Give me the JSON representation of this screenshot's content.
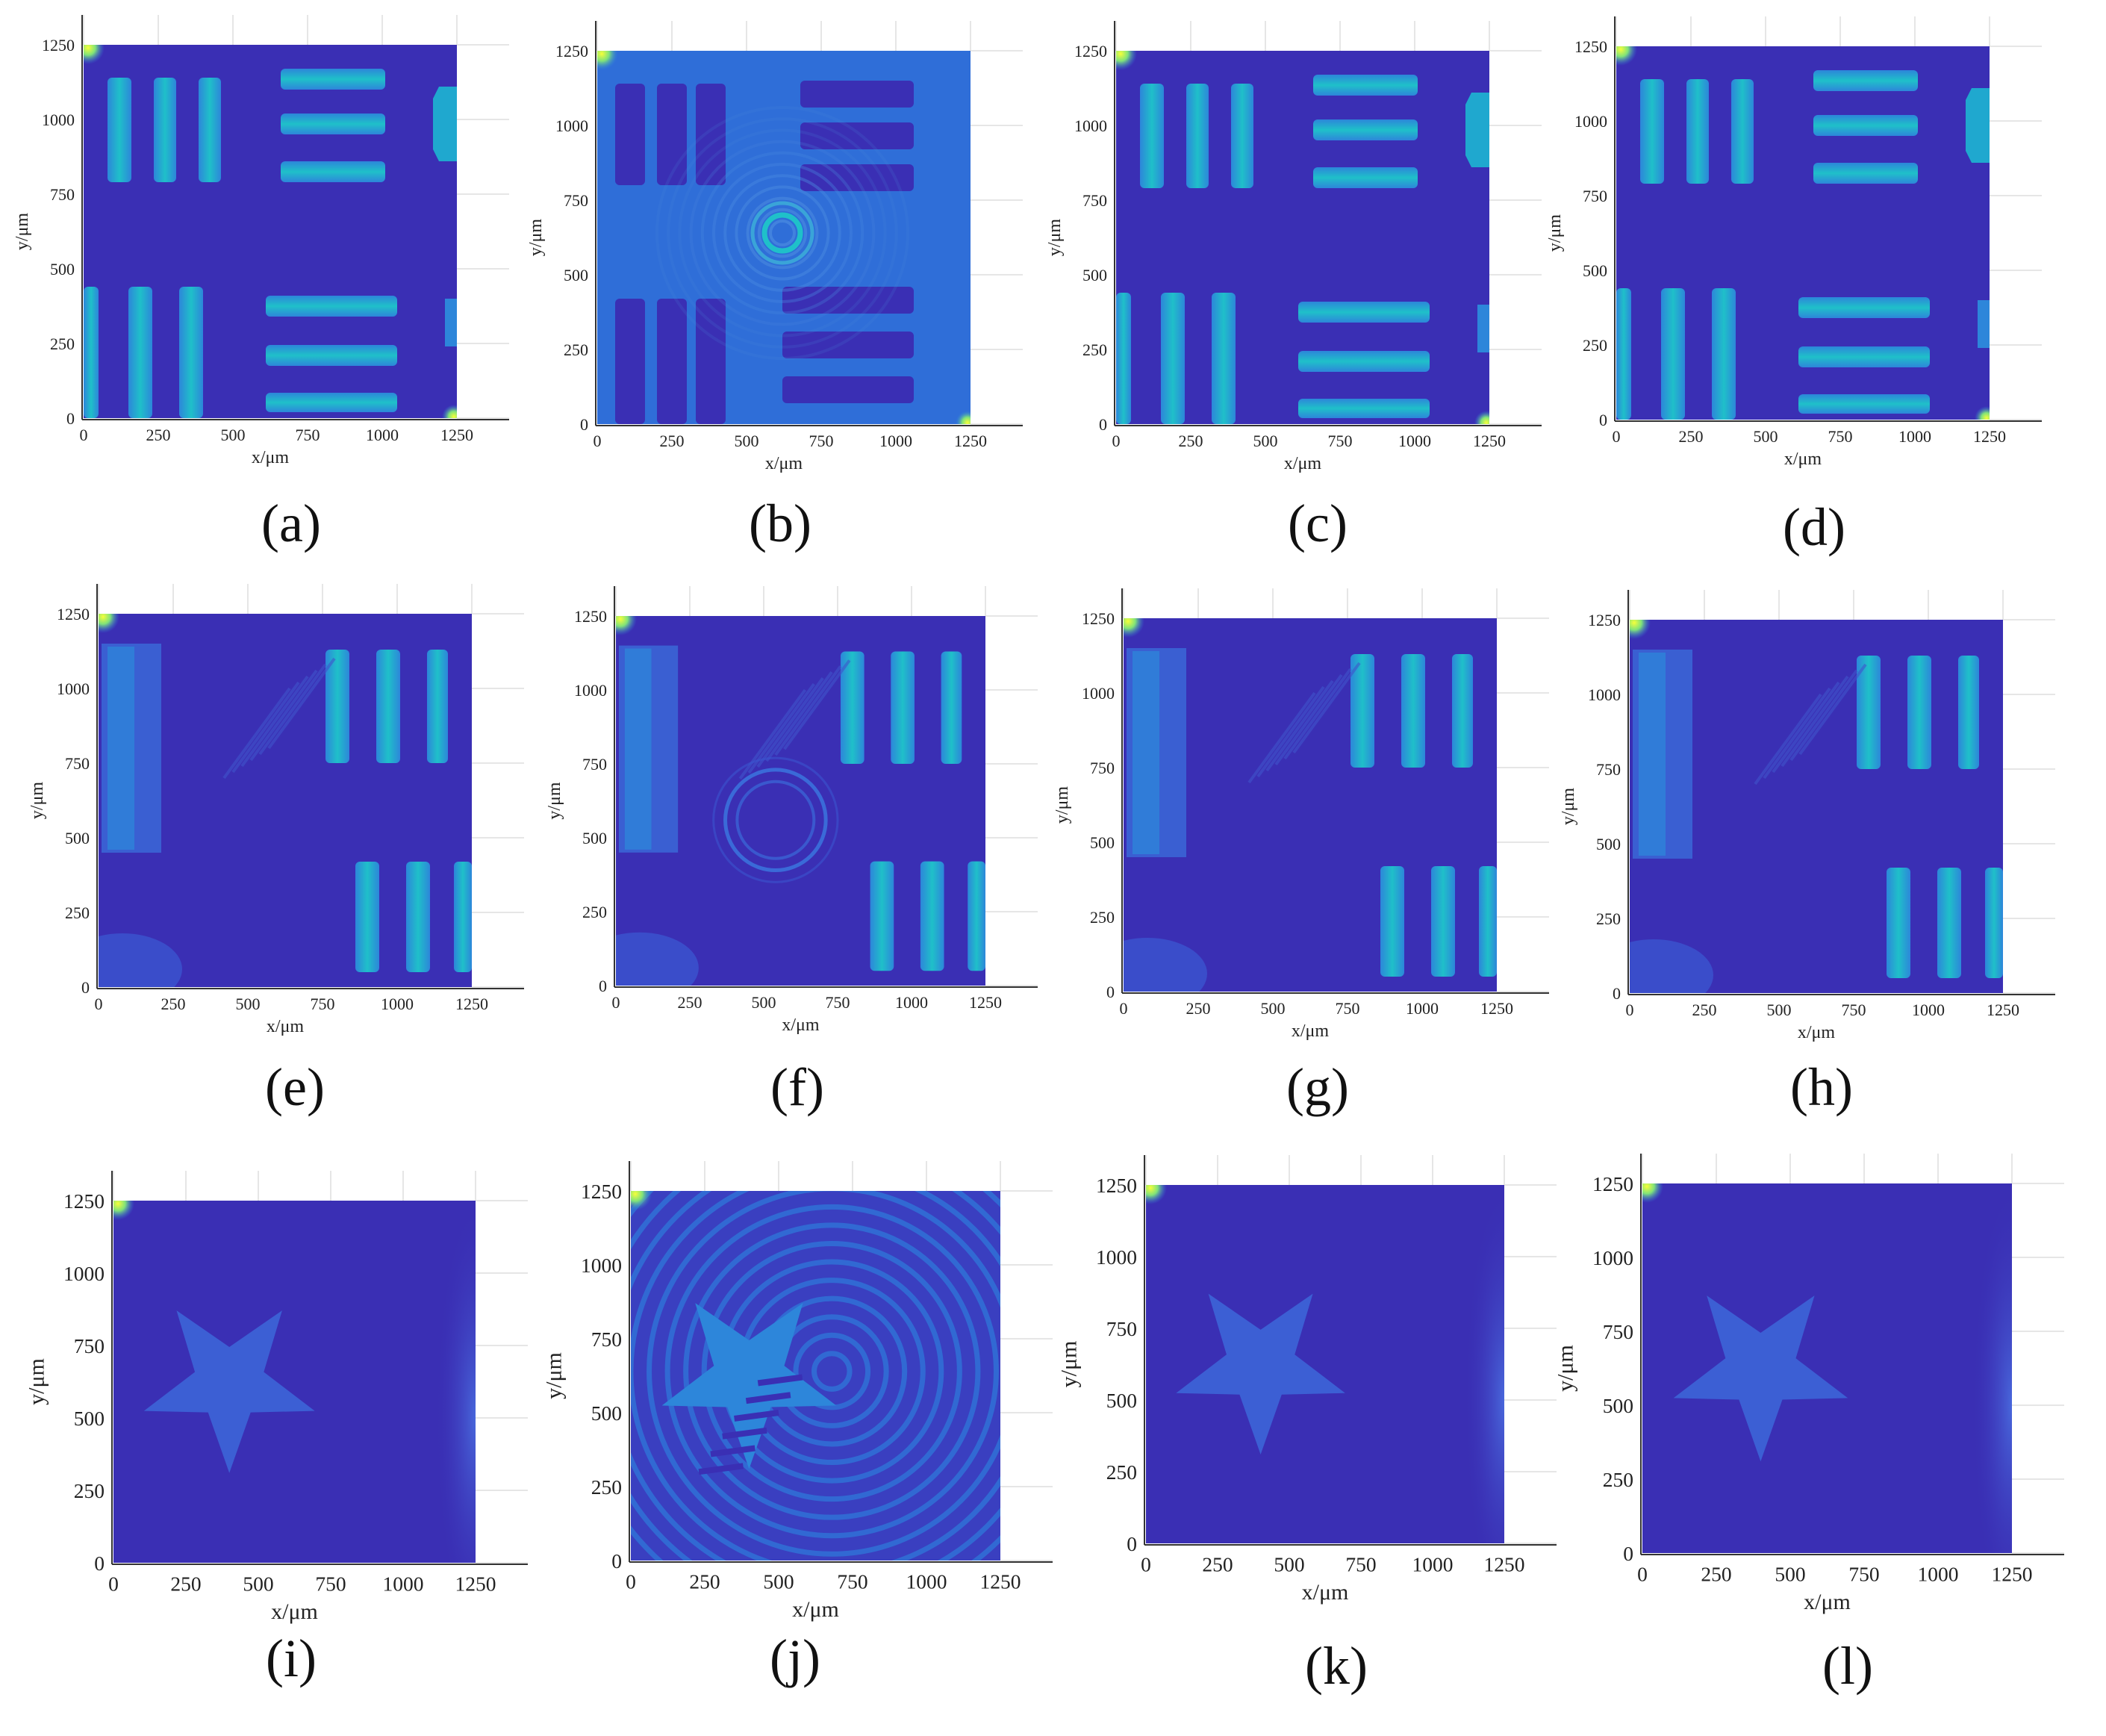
{
  "colors": {
    "background_field": "#3a2fb4",
    "pattern_bright": "#1fb8d2",
    "pattern_mid": "#2d86da",
    "pattern_dim": "#3a5fd2",
    "hotspot": "#e8f23a",
    "axis": "#333333",
    "grid": "#e6e6e6"
  },
  "common_axes": {
    "xlabel": "x/μm",
    "ylabel": "y/μm",
    "xticks": [
      "0",
      "250",
      "500",
      "750",
      "1000",
      "1250"
    ],
    "yticks": [
      "0",
      "250",
      "500",
      "750",
      "1000",
      "1250"
    ],
    "xlim": [
      0,
      1250
    ],
    "ylim": [
      0,
      1250
    ]
  },
  "chart_data": [
    {
      "type": "heatmap",
      "panel_label": "(a)",
      "pattern": "bars-group-a",
      "xlabel": "x/μm",
      "ylabel": "y/μm",
      "xlim": [
        0,
        1250
      ],
      "ylim": [
        0,
        1250
      ]
    },
    {
      "type": "heatmap",
      "panel_label": "(b)",
      "pattern": "bars-group-a-inverted-with-rings",
      "xlabel": "x/μm",
      "ylabel": "y/μm",
      "xlim": [
        0,
        1250
      ],
      "ylim": [
        0,
        1250
      ]
    },
    {
      "type": "heatmap",
      "panel_label": "(c)",
      "pattern": "bars-group-a",
      "xlabel": "x/μm",
      "ylabel": "y/μm",
      "xlim": [
        0,
        1250
      ],
      "ylim": [
        0,
        1250
      ]
    },
    {
      "type": "heatmap",
      "panel_label": "(d)",
      "pattern": "bars-group-a",
      "xlabel": "x/μm",
      "ylabel": "y/μm",
      "xlim": [
        0,
        1250
      ],
      "ylim": [
        0,
        1250
      ]
    },
    {
      "type": "heatmap",
      "panel_label": "(e)",
      "pattern": "bars-group-b",
      "xlabel": "x/μm",
      "ylabel": "y/μm",
      "xlim": [
        0,
        1250
      ],
      "ylim": [
        0,
        1250
      ]
    },
    {
      "type": "heatmap",
      "panel_label": "(f)",
      "pattern": "bars-group-b-with-ring",
      "xlabel": "x/μm",
      "ylabel": "y/μm",
      "xlim": [
        0,
        1250
      ],
      "ylim": [
        0,
        1250
      ]
    },
    {
      "type": "heatmap",
      "panel_label": "(g)",
      "pattern": "bars-group-b",
      "xlabel": "x/μm",
      "ylabel": "y/μm",
      "xlim": [
        0,
        1250
      ],
      "ylim": [
        0,
        1250
      ]
    },
    {
      "type": "heatmap",
      "panel_label": "(h)",
      "pattern": "bars-group-b",
      "xlabel": "x/μm",
      "ylabel": "y/μm",
      "xlim": [
        0,
        1250
      ],
      "ylim": [
        0,
        1250
      ]
    },
    {
      "type": "heatmap",
      "panel_label": "(i)",
      "pattern": "star",
      "xlabel": "x/μm",
      "ylabel": "y/μm",
      "xlim": [
        0,
        1250
      ],
      "ylim": [
        0,
        1250
      ]
    },
    {
      "type": "heatmap",
      "panel_label": "(j)",
      "pattern": "star-with-rings",
      "xlabel": "x/μm",
      "ylabel": "y/μm",
      "xlim": [
        0,
        1250
      ],
      "ylim": [
        0,
        1250
      ]
    },
    {
      "type": "heatmap",
      "panel_label": "(k)",
      "pattern": "star",
      "xlabel": "x/μm",
      "ylabel": "y/μm",
      "xlim": [
        0,
        1250
      ],
      "ylim": [
        0,
        1250
      ]
    },
    {
      "type": "heatmap",
      "panel_label": "(l)",
      "pattern": "star",
      "xlabel": "x/μm",
      "ylabel": "y/μm",
      "xlim": [
        0,
        1250
      ],
      "ylim": [
        0,
        1250
      ]
    }
  ]
}
